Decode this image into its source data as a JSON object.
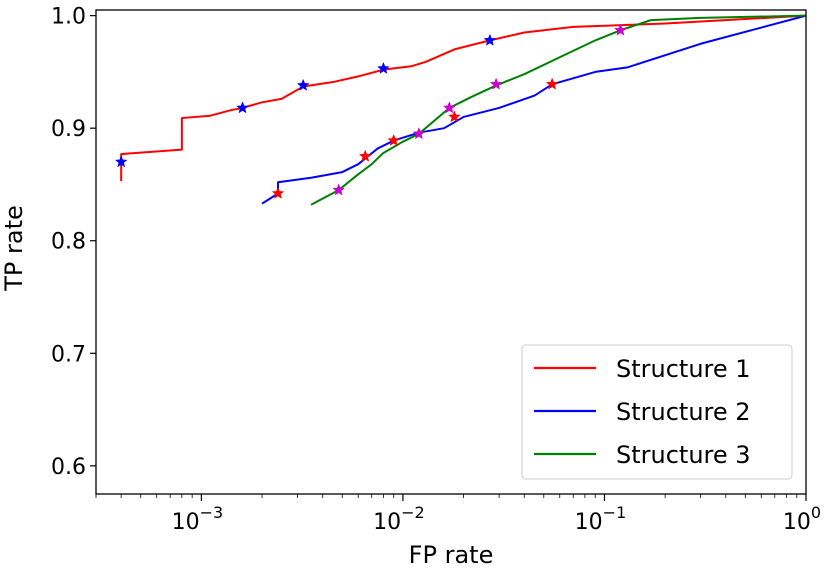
{
  "chart_data": {
    "type": "line",
    "xscale": "log",
    "xlabel": "FP rate",
    "ylabel": "TP rate",
    "xlim": [
      0.0003,
      1.0
    ],
    "ylim": [
      0.575,
      1.005
    ],
    "xticks": [
      {
        "value": 0.001,
        "base": "10",
        "exp": "−3"
      },
      {
        "value": 0.01,
        "base": "10",
        "exp": "−2"
      },
      {
        "value": 0.1,
        "base": "10",
        "exp": "−1"
      },
      {
        "value": 1.0,
        "base": "10",
        "exp": "0"
      }
    ],
    "yticks": [
      {
        "value": 0.6,
        "label": "0.6"
      },
      {
        "value": 0.7,
        "label": "0.7"
      },
      {
        "value": 0.8,
        "label": "0.8"
      },
      {
        "value": 0.9,
        "label": "0.9"
      },
      {
        "value": 1.0,
        "label": "1.0"
      }
    ],
    "legend_position": "lower-right",
    "series": [
      {
        "name": "Structure 1",
        "color": "#ff0000",
        "marker_color": "#0000ff",
        "points": [
          [
            0.0004,
            0.853
          ],
          [
            0.0004,
            0.877
          ],
          [
            0.0008,
            0.881
          ],
          [
            0.0008,
            0.909
          ],
          [
            0.0011,
            0.911
          ],
          [
            0.0014,
            0.916
          ],
          [
            0.0016,
            0.918
          ],
          [
            0.002,
            0.923
          ],
          [
            0.0025,
            0.926
          ],
          [
            0.0032,
            0.937
          ],
          [
            0.0045,
            0.941
          ],
          [
            0.006,
            0.946
          ],
          [
            0.008,
            0.952
          ],
          [
            0.011,
            0.955
          ],
          [
            0.013,
            0.959
          ],
          [
            0.018,
            0.97
          ],
          [
            0.027,
            0.978
          ],
          [
            0.04,
            0.985
          ],
          [
            0.07,
            0.99
          ],
          [
            0.2,
            0.993
          ],
          [
            0.5,
            0.997
          ],
          [
            1.0,
            1.0
          ]
        ],
        "markers": [
          [
            0.0004,
            0.87
          ],
          [
            0.0016,
            0.918
          ],
          [
            0.0032,
            0.938
          ],
          [
            0.008,
            0.953
          ],
          [
            0.027,
            0.978
          ]
        ]
      },
      {
        "name": "Structure 2",
        "color": "#0000ff",
        "marker_color": "#ff0000",
        "points": [
          [
            0.002,
            0.833
          ],
          [
            0.0024,
            0.842
          ],
          [
            0.0024,
            0.852
          ],
          [
            0.0035,
            0.856
          ],
          [
            0.005,
            0.861
          ],
          [
            0.006,
            0.868
          ],
          [
            0.0075,
            0.882
          ],
          [
            0.009,
            0.889
          ],
          [
            0.012,
            0.896
          ],
          [
            0.016,
            0.9
          ],
          [
            0.02,
            0.91
          ],
          [
            0.03,
            0.918
          ],
          [
            0.045,
            0.929
          ],
          [
            0.055,
            0.939
          ],
          [
            0.09,
            0.95
          ],
          [
            0.13,
            0.954
          ],
          [
            0.3,
            0.975
          ],
          [
            1.0,
            1.0
          ]
        ],
        "markers": [
          [
            0.0024,
            0.842
          ],
          [
            0.0065,
            0.875
          ],
          [
            0.009,
            0.889
          ],
          [
            0.018,
            0.91
          ],
          [
            0.055,
            0.939
          ]
        ]
      },
      {
        "name": "Structure 3",
        "color": "#008000",
        "marker_color": "#cc00cc",
        "points": [
          [
            0.0035,
            0.832
          ],
          [
            0.0048,
            0.845
          ],
          [
            0.006,
            0.859
          ],
          [
            0.007,
            0.868
          ],
          [
            0.008,
            0.878
          ],
          [
            0.01,
            0.888
          ],
          [
            0.012,
            0.895
          ],
          [
            0.017,
            0.918
          ],
          [
            0.022,
            0.928
          ],
          [
            0.029,
            0.938
          ],
          [
            0.04,
            0.948
          ],
          [
            0.06,
            0.963
          ],
          [
            0.09,
            0.978
          ],
          [
            0.12,
            0.987
          ],
          [
            0.17,
            0.996
          ],
          [
            0.3,
            0.998
          ],
          [
            1.0,
            1.0
          ]
        ],
        "markers": [
          [
            0.0048,
            0.845
          ],
          [
            0.012,
            0.895
          ],
          [
            0.017,
            0.918
          ],
          [
            0.029,
            0.939
          ],
          [
            0.12,
            0.987
          ]
        ]
      }
    ]
  }
}
